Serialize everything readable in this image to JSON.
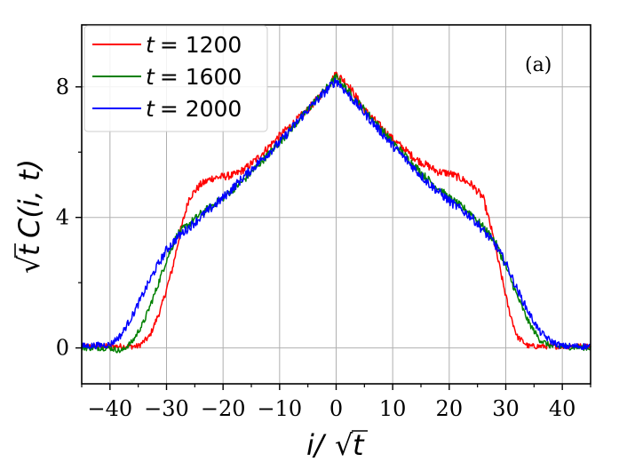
{
  "chart_data": {
    "type": "line",
    "title": "",
    "panel_label": "(a)",
    "xlabel": "i/√t",
    "ylabel": "√t C(i, t)",
    "xlim": [
      -45,
      45
    ],
    "ylim": [
      -1.1,
      9.9
    ],
    "xticks": [
      -40,
      -30,
      -20,
      -10,
      0,
      10,
      20,
      30,
      40
    ],
    "xtick_labels": [
      "−40",
      "−30",
      "−20",
      "−10",
      "0",
      "10",
      "20",
      "30",
      "40"
    ],
    "yticks": [
      0,
      4,
      8
    ],
    "ytick_labels": [
      "0",
      "4",
      "8"
    ],
    "grid": true,
    "legend_position": "top-left",
    "series": [
      {
        "name": "t = 1200",
        "label_var": "t",
        "label_value": "= 1200",
        "color": "#ff0000",
        "noise": 0.12,
        "points": [
          [
            -45,
            0.05
          ],
          [
            -40,
            0.05
          ],
          [
            -35,
            0.05
          ],
          [
            -33,
            0.35
          ],
          [
            -31,
            1.2
          ],
          [
            -29,
            2.4
          ],
          [
            -27.5,
            3.6
          ],
          [
            -26,
            4.6
          ],
          [
            -24,
            5.0
          ],
          [
            -22,
            5.2
          ],
          [
            -20,
            5.25
          ],
          [
            -18,
            5.3
          ],
          [
            -16,
            5.5
          ],
          [
            -14,
            5.8
          ],
          [
            -10,
            6.5
          ],
          [
            -5,
            7.3
          ],
          [
            -2,
            7.9
          ],
          [
            0,
            8.4
          ],
          [
            2,
            8.1
          ],
          [
            5,
            7.3
          ],
          [
            10,
            6.4
          ],
          [
            14,
            5.8
          ],
          [
            18,
            5.4
          ],
          [
            20,
            5.35
          ],
          [
            22,
            5.2
          ],
          [
            24,
            5.0
          ],
          [
            26,
            4.6
          ],
          [
            27.5,
            3.6
          ],
          [
            29,
            2.4
          ],
          [
            30.5,
            1.2
          ],
          [
            32,
            0.35
          ],
          [
            34,
            0.05
          ],
          [
            45,
            0.05
          ]
        ]
      },
      {
        "name": "t = 1600",
        "label_var": "t",
        "label_value": "= 1600",
        "color": "#008000",
        "noise": 0.12,
        "points": [
          [
            -45,
            0.0
          ],
          [
            -40,
            0.0
          ],
          [
            -38,
            -0.1
          ],
          [
            -36,
            0.2
          ],
          [
            -34,
            0.8
          ],
          [
            -32,
            1.7
          ],
          [
            -30,
            2.7
          ],
          [
            -28,
            3.5
          ],
          [
            -26,
            3.8
          ],
          [
            -24,
            4.1
          ],
          [
            -20,
            4.6
          ],
          [
            -16,
            5.2
          ],
          [
            -10,
            6.3
          ],
          [
            -5,
            7.3
          ],
          [
            0,
            8.3
          ],
          [
            5,
            7.3
          ],
          [
            10,
            6.3
          ],
          [
            16,
            5.2
          ],
          [
            20,
            4.6
          ],
          [
            24,
            4.1
          ],
          [
            26,
            3.7
          ],
          [
            28,
            3.3
          ],
          [
            30,
            2.5
          ],
          [
            32,
            1.6
          ],
          [
            34,
            0.8
          ],
          [
            36,
            0.25
          ],
          [
            38,
            0.05
          ],
          [
            45,
            0.0
          ]
        ]
      },
      {
        "name": "t = 2000",
        "label_var": "t",
        "label_value": "= 2000",
        "color": "#0000ff",
        "noise": 0.14,
        "points": [
          [
            -45,
            0.05
          ],
          [
            -40,
            0.1
          ],
          [
            -38,
            0.4
          ],
          [
            -36,
            1.0
          ],
          [
            -34,
            1.7
          ],
          [
            -32,
            2.4
          ],
          [
            -30,
            3.0
          ],
          [
            -28,
            3.4
          ],
          [
            -26,
            3.7
          ],
          [
            -24,
            4.0
          ],
          [
            -20,
            4.6
          ],
          [
            -16,
            5.3
          ],
          [
            -10,
            6.3
          ],
          [
            -5,
            7.3
          ],
          [
            0,
            8.2
          ],
          [
            5,
            7.2
          ],
          [
            10,
            6.2
          ],
          [
            16,
            5.1
          ],
          [
            20,
            4.5
          ],
          [
            24,
            4.0
          ],
          [
            26,
            3.6
          ],
          [
            28,
            3.2
          ],
          [
            30,
            2.6
          ],
          [
            32,
            1.8
          ],
          [
            34,
            1.1
          ],
          [
            36,
            0.5
          ],
          [
            38,
            0.2
          ],
          [
            40,
            0.05
          ],
          [
            45,
            0.05
          ]
        ]
      }
    ]
  }
}
